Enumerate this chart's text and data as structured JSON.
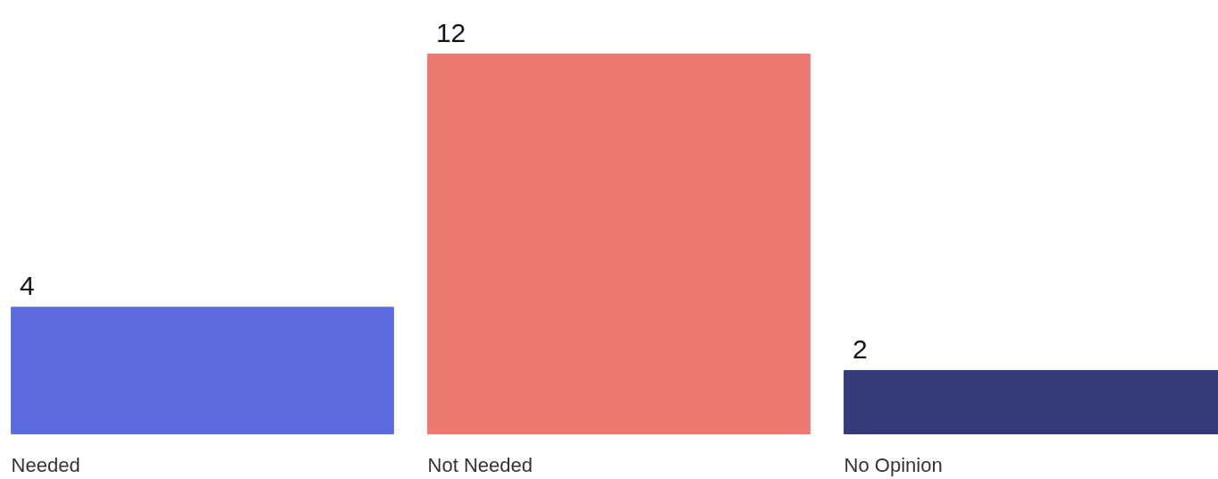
{
  "chart_data": {
    "type": "bar",
    "categories": [
      "Needed",
      "Not Needed",
      "No Opinion"
    ],
    "values": [
      4,
      12,
      2
    ],
    "colors": [
      "#5c6ae0",
      "#ec7a73",
      "#353a78"
    ],
    "data_labels": true
  }
}
